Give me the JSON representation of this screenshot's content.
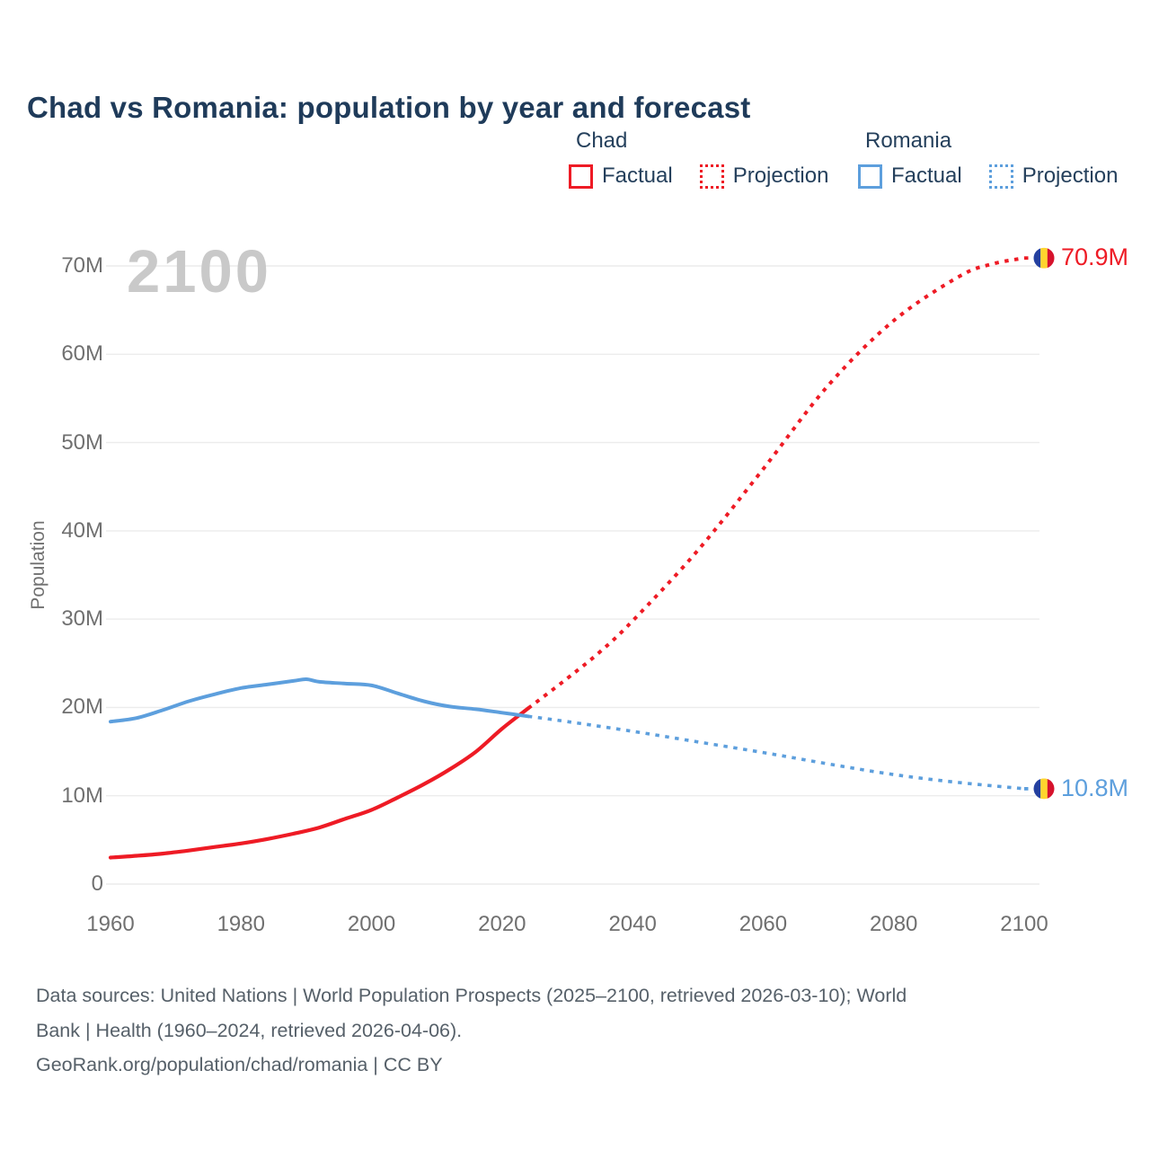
{
  "title": "Chad vs Romania: population by year and forecast",
  "watermark": "2100",
  "legend": {
    "chad": {
      "label": "Chad",
      "factual": "Factual",
      "projection": "Projection"
    },
    "romania": {
      "label": "Romania",
      "factual": "Factual",
      "projection": "Projection"
    }
  },
  "end_labels": {
    "chad": "70.9M",
    "romania": "10.8M"
  },
  "colors": {
    "chad_red": "#ee1b25",
    "romania_blue": "#5d9fdd",
    "title_navy": "#1f3b5a",
    "axis_text": "#707070",
    "footer_text": "#566069",
    "watermark_gray": "#c9c9c9",
    "gridline": "#ececec",
    "flag_blue": "#24409f",
    "flag_yellow": "#ffd52e",
    "flag_red": "#d6122c"
  },
  "chart_data": {
    "type": "line",
    "title": "Chad vs Romania: population by year and forecast",
    "xlabel": "",
    "ylabel": "Population",
    "unit": "millions",
    "xlim": [
      1960,
      2100
    ],
    "ylim": [
      0,
      70
    ],
    "grid": "horizontal",
    "legend_position": "top-right",
    "x_ticks": [
      "1960",
      "1980",
      "2000",
      "2020",
      "2040",
      "2060",
      "2080",
      "2100"
    ],
    "y_ticks": [
      {
        "value": 70,
        "label": "70M"
      },
      {
        "value": 60,
        "label": "60M"
      },
      {
        "value": 50,
        "label": "50M"
      },
      {
        "value": 40,
        "label": "40M"
      },
      {
        "value": 30,
        "label": "30M"
      },
      {
        "value": 20,
        "label": "20M"
      },
      {
        "value": 10,
        "label": "10M"
      },
      {
        "value": 0,
        "label": "0"
      }
    ],
    "series": [
      {
        "name": "Chad Factual",
        "style": "solid",
        "color": "#ee1b25",
        "width": 4.2,
        "points": [
          [
            1960,
            3.0
          ],
          [
            1964,
            3.2
          ],
          [
            1968,
            3.45
          ],
          [
            1972,
            3.8
          ],
          [
            1976,
            4.2
          ],
          [
            1980,
            4.6
          ],
          [
            1984,
            5.1
          ],
          [
            1988,
            5.7
          ],
          [
            1992,
            6.4
          ],
          [
            1996,
            7.4
          ],
          [
            2000,
            8.4
          ],
          [
            2004,
            9.8
          ],
          [
            2008,
            11.3
          ],
          [
            2012,
            13.0
          ],
          [
            2016,
            15.0
          ],
          [
            2020,
            17.6
          ],
          [
            2024,
            19.9
          ]
        ]
      },
      {
        "name": "Chad Projection",
        "style": "dotted",
        "color": "#ee1b25",
        "width": 4,
        "points": [
          [
            2024,
            19.9
          ],
          [
            2030,
            23.3
          ],
          [
            2035,
            26.3
          ],
          [
            2040,
            29.8
          ],
          [
            2050,
            37.8
          ],
          [
            2060,
            47.0
          ],
          [
            2070,
            56.5
          ],
          [
            2080,
            63.8
          ],
          [
            2090,
            68.8
          ],
          [
            2095,
            70.2
          ],
          [
            2100,
            70.9
          ]
        ]
      },
      {
        "name": "Romania Factual",
        "style": "solid",
        "color": "#5d9fdd",
        "width": 4,
        "points": [
          [
            1960,
            18.4
          ],
          [
            1964,
            18.8
          ],
          [
            1968,
            19.7
          ],
          [
            1972,
            20.7
          ],
          [
            1976,
            21.5
          ],
          [
            1980,
            22.2
          ],
          [
            1984,
            22.6
          ],
          [
            1988,
            23.0
          ],
          [
            1990,
            23.2
          ],
          [
            1992,
            22.9
          ],
          [
            1996,
            22.7
          ],
          [
            2000,
            22.5
          ],
          [
            2004,
            21.6
          ],
          [
            2008,
            20.7
          ],
          [
            2012,
            20.1
          ],
          [
            2016,
            19.8
          ],
          [
            2020,
            19.4
          ],
          [
            2024,
            19.0
          ]
        ]
      },
      {
        "name": "Romania Projection",
        "style": "dotted",
        "color": "#5d9fdd",
        "width": 3.6,
        "points": [
          [
            2024,
            19.0
          ],
          [
            2030,
            18.4
          ],
          [
            2040,
            17.3
          ],
          [
            2050,
            16.1
          ],
          [
            2060,
            14.9
          ],
          [
            2070,
            13.6
          ],
          [
            2080,
            12.4
          ],
          [
            2090,
            11.5
          ],
          [
            2100,
            10.8
          ]
        ]
      }
    ],
    "end_markers": [
      {
        "country": "Chad",
        "icon": "chad-flag-icon",
        "year": 2100,
        "value": 70.9,
        "label": "70.9M",
        "color": "#ee1b25"
      },
      {
        "country": "Romania",
        "icon": "romania-flag-icon",
        "year": 2100,
        "value": 10.8,
        "label": "10.8M",
        "color": "#5d9fdd"
      }
    ]
  },
  "footer": {
    "lines": [
      "Data sources: United Nations | World Population Prospects (2025–2100, retrieved 2026-03-10); World",
      "Bank | Health (1960–2024, retrieved 2026-04-06).",
      "GeoRank.org/population/chad/romania | CC BY"
    ]
  }
}
